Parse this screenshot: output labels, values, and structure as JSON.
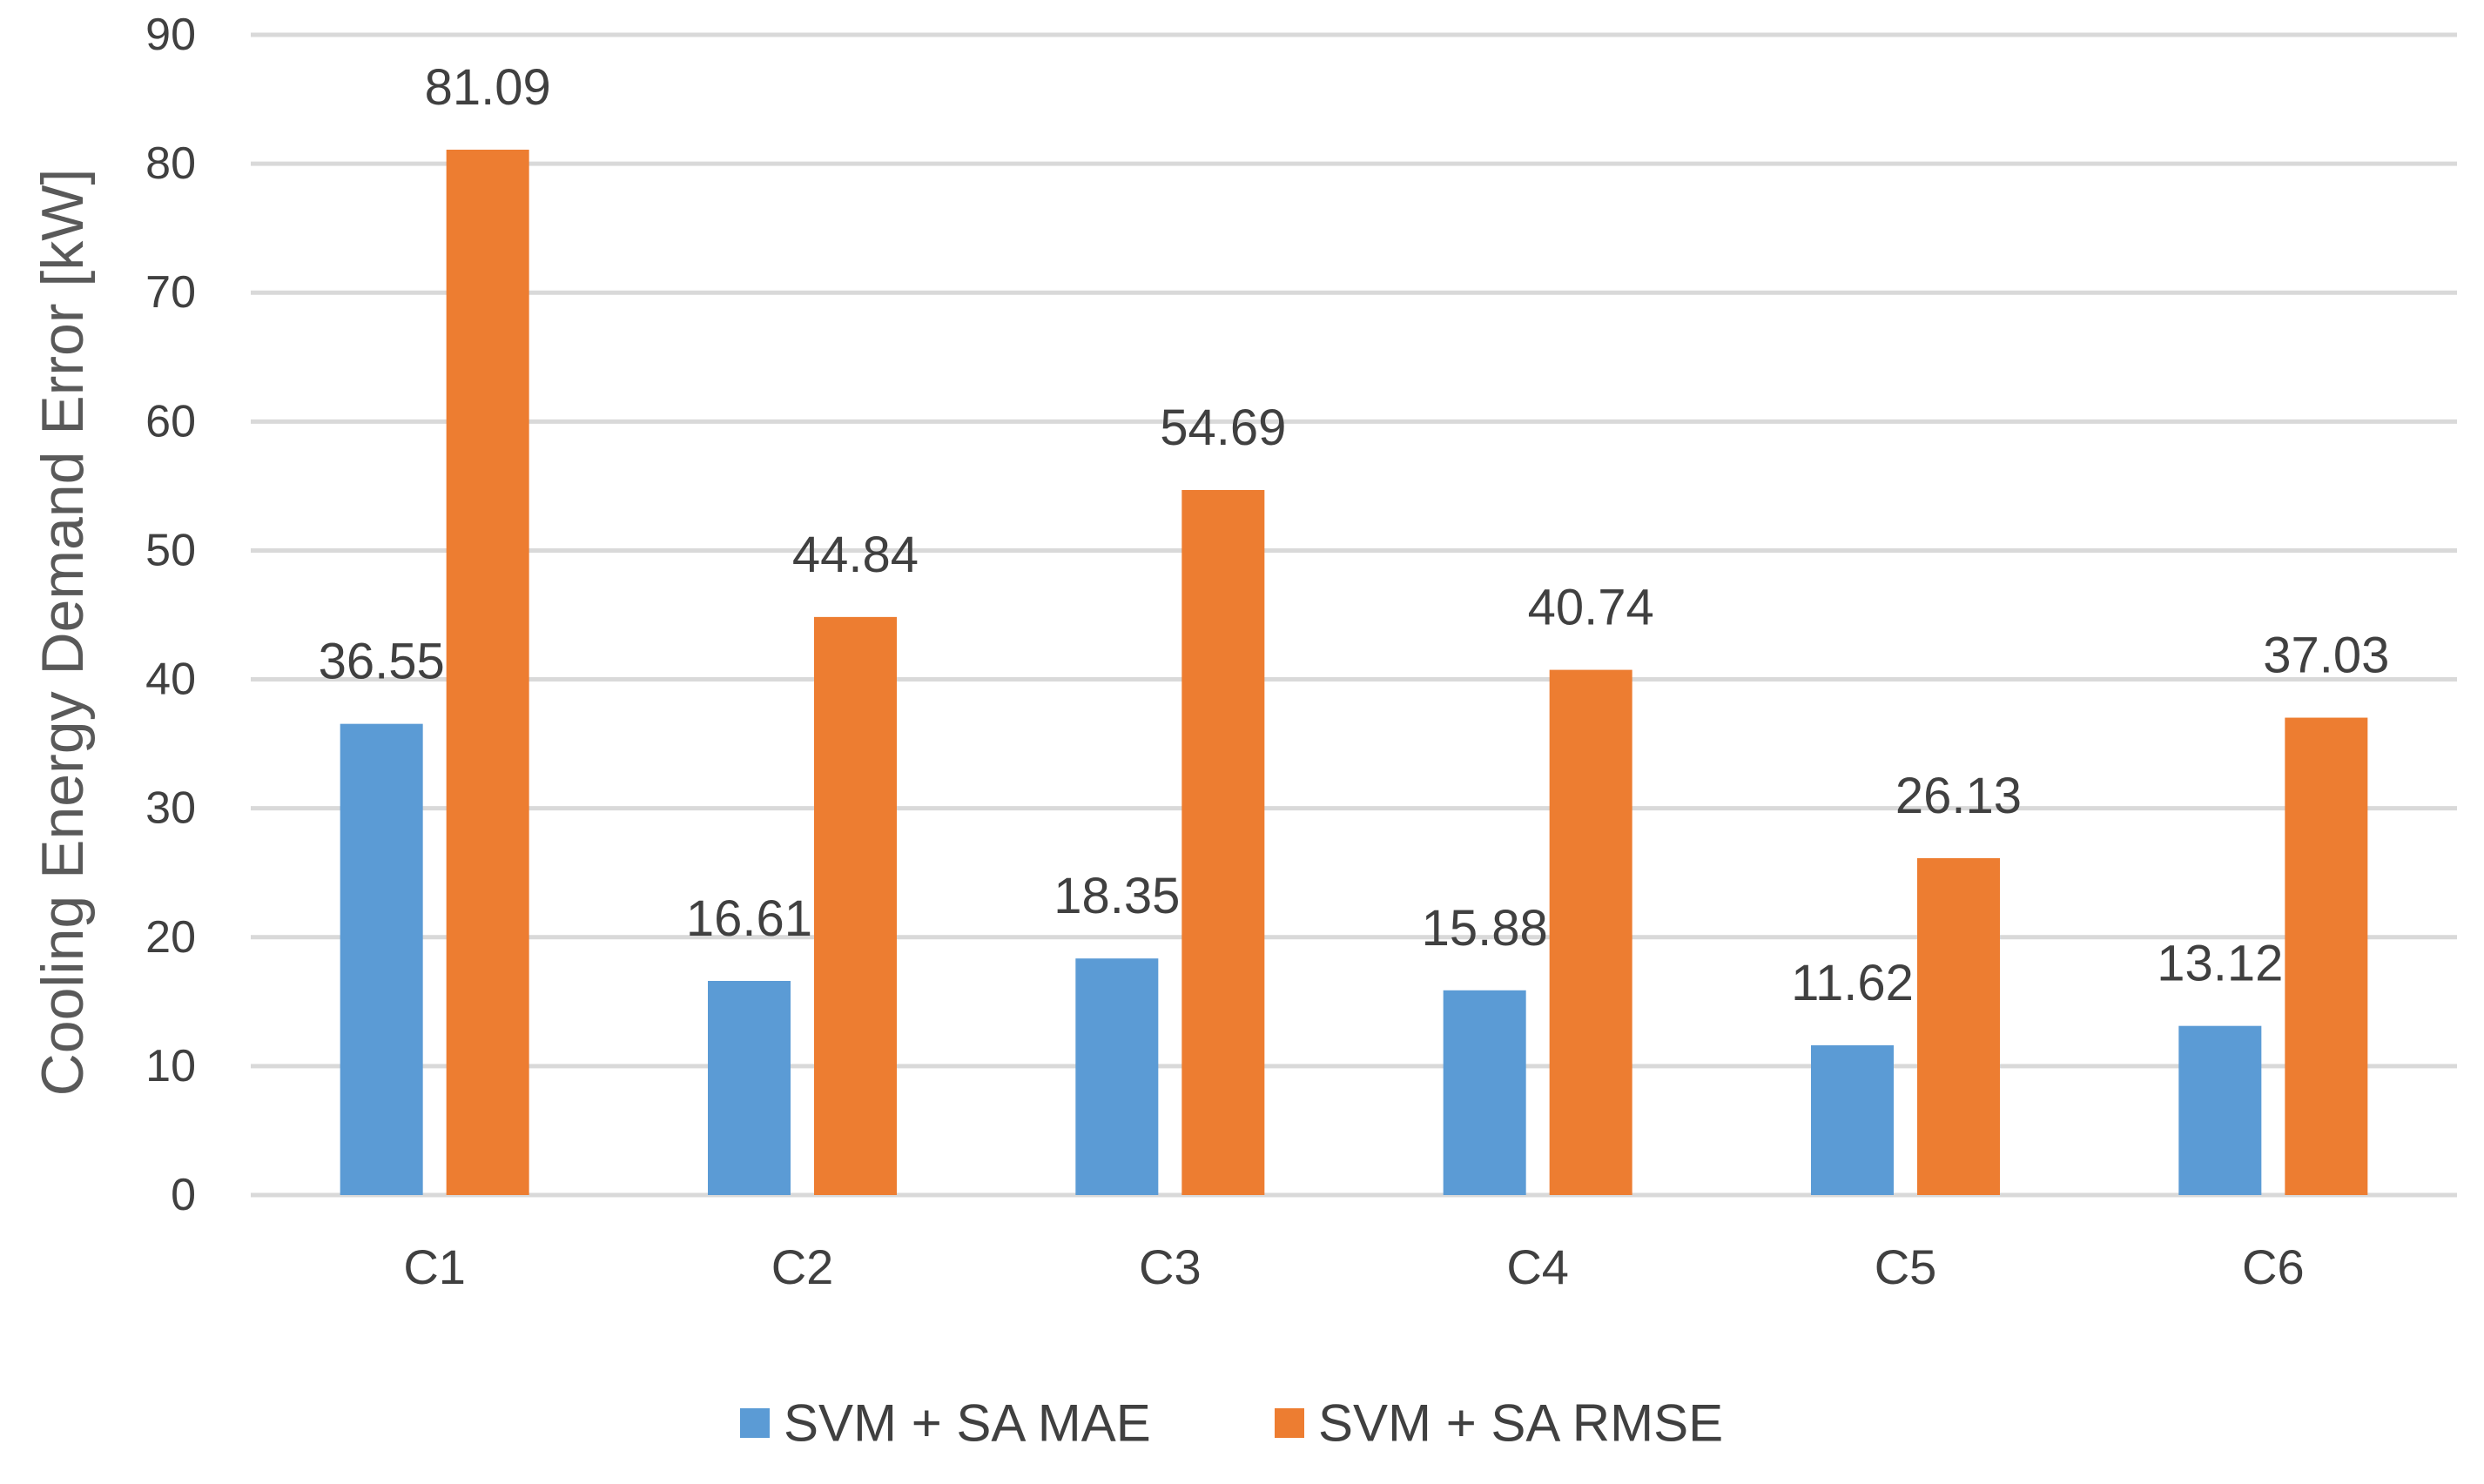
{
  "chart_data": {
    "type": "bar",
    "title": "",
    "xlabel": "",
    "ylabel": "Cooling Energy Demand Error [kW]",
    "ylim": [
      0,
      90
    ],
    "y_ticks": [
      0,
      10,
      20,
      30,
      40,
      50,
      60,
      70,
      80,
      90
    ],
    "grid": true,
    "legend_position": "bottom",
    "categories": [
      "C1",
      "C2",
      "C3",
      "C4",
      "C5",
      "C6"
    ],
    "series": [
      {
        "name": "SVM + SA MAE",
        "color": "#5B9BD5",
        "values": [
          36.55,
          16.61,
          18.35,
          15.88,
          11.62,
          13.12
        ],
        "labels": [
          "36.55",
          "16.61",
          "18.35",
          "15.88",
          "11.62",
          "13.12"
        ]
      },
      {
        "name": "SVM + SA RMSE",
        "color": "#ED7D31",
        "values": [
          81.09,
          44.84,
          54.69,
          40.74,
          26.13,
          37.03
        ],
        "labels": [
          "81.09",
          "44.84",
          "54.69",
          "40.74",
          "26.13",
          "37.03"
        ]
      }
    ],
    "colors": {
      "gridline": "#D9D9D9",
      "text": "#404040",
      "axis_title": "#595959"
    }
  }
}
